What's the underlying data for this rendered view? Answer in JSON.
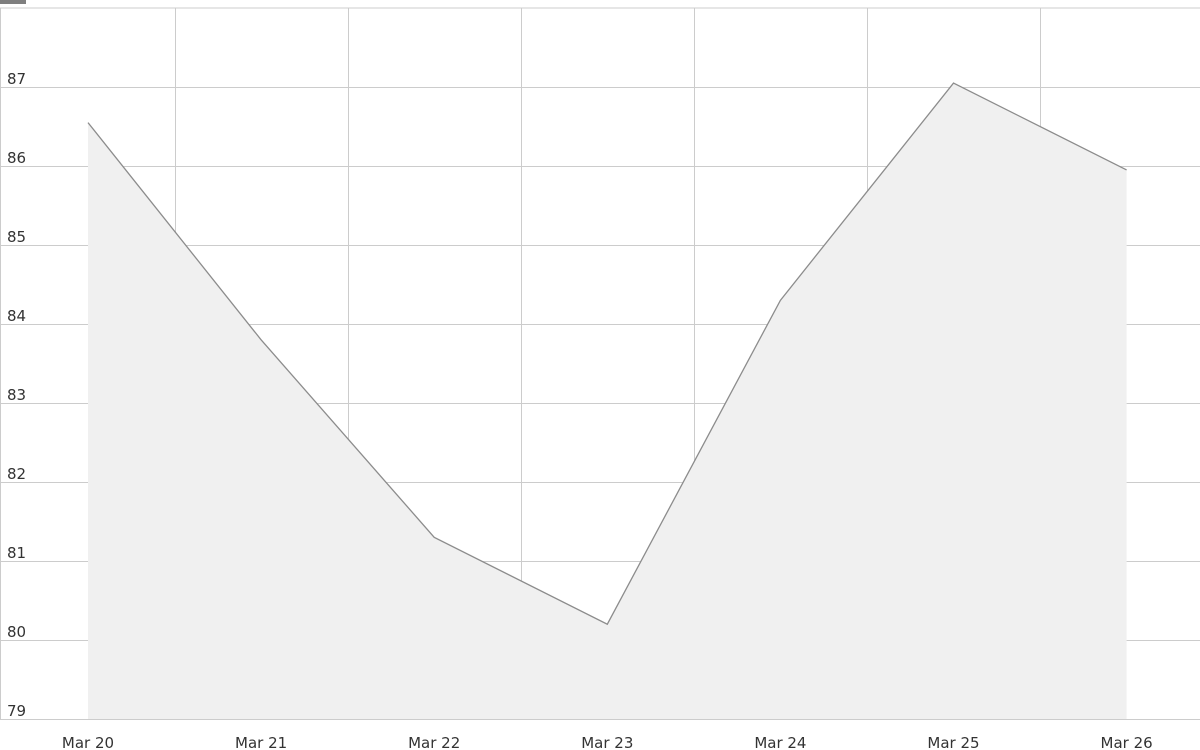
{
  "chart_data": {
    "type": "area",
    "title": "",
    "xlabel": "",
    "ylabel": "",
    "categories": [
      "Mar 20",
      "Mar 21",
      "Mar 22",
      "Mar 23",
      "Mar 24",
      "Mar 25",
      "Mar 26"
    ],
    "x_ticks": [
      "Mar 20",
      "Mar 21",
      "Mar 22",
      "Mar 23",
      "Mar 24",
      "Mar 25",
      "Mar 26"
    ],
    "y_ticks": [
      "79",
      "80",
      "81",
      "82",
      "83",
      "84",
      "85",
      "86",
      "87"
    ],
    "ylim": [
      79,
      88
    ],
    "grid": true,
    "series": [
      {
        "values": [
          86.55,
          83.8,
          81.3,
          80.2,
          84.3,
          87.05,
          85.95
        ]
      }
    ],
    "colors": {
      "line": "#8c8c8c",
      "fill": "#f0f0f0",
      "grid": "#cccccc"
    }
  }
}
